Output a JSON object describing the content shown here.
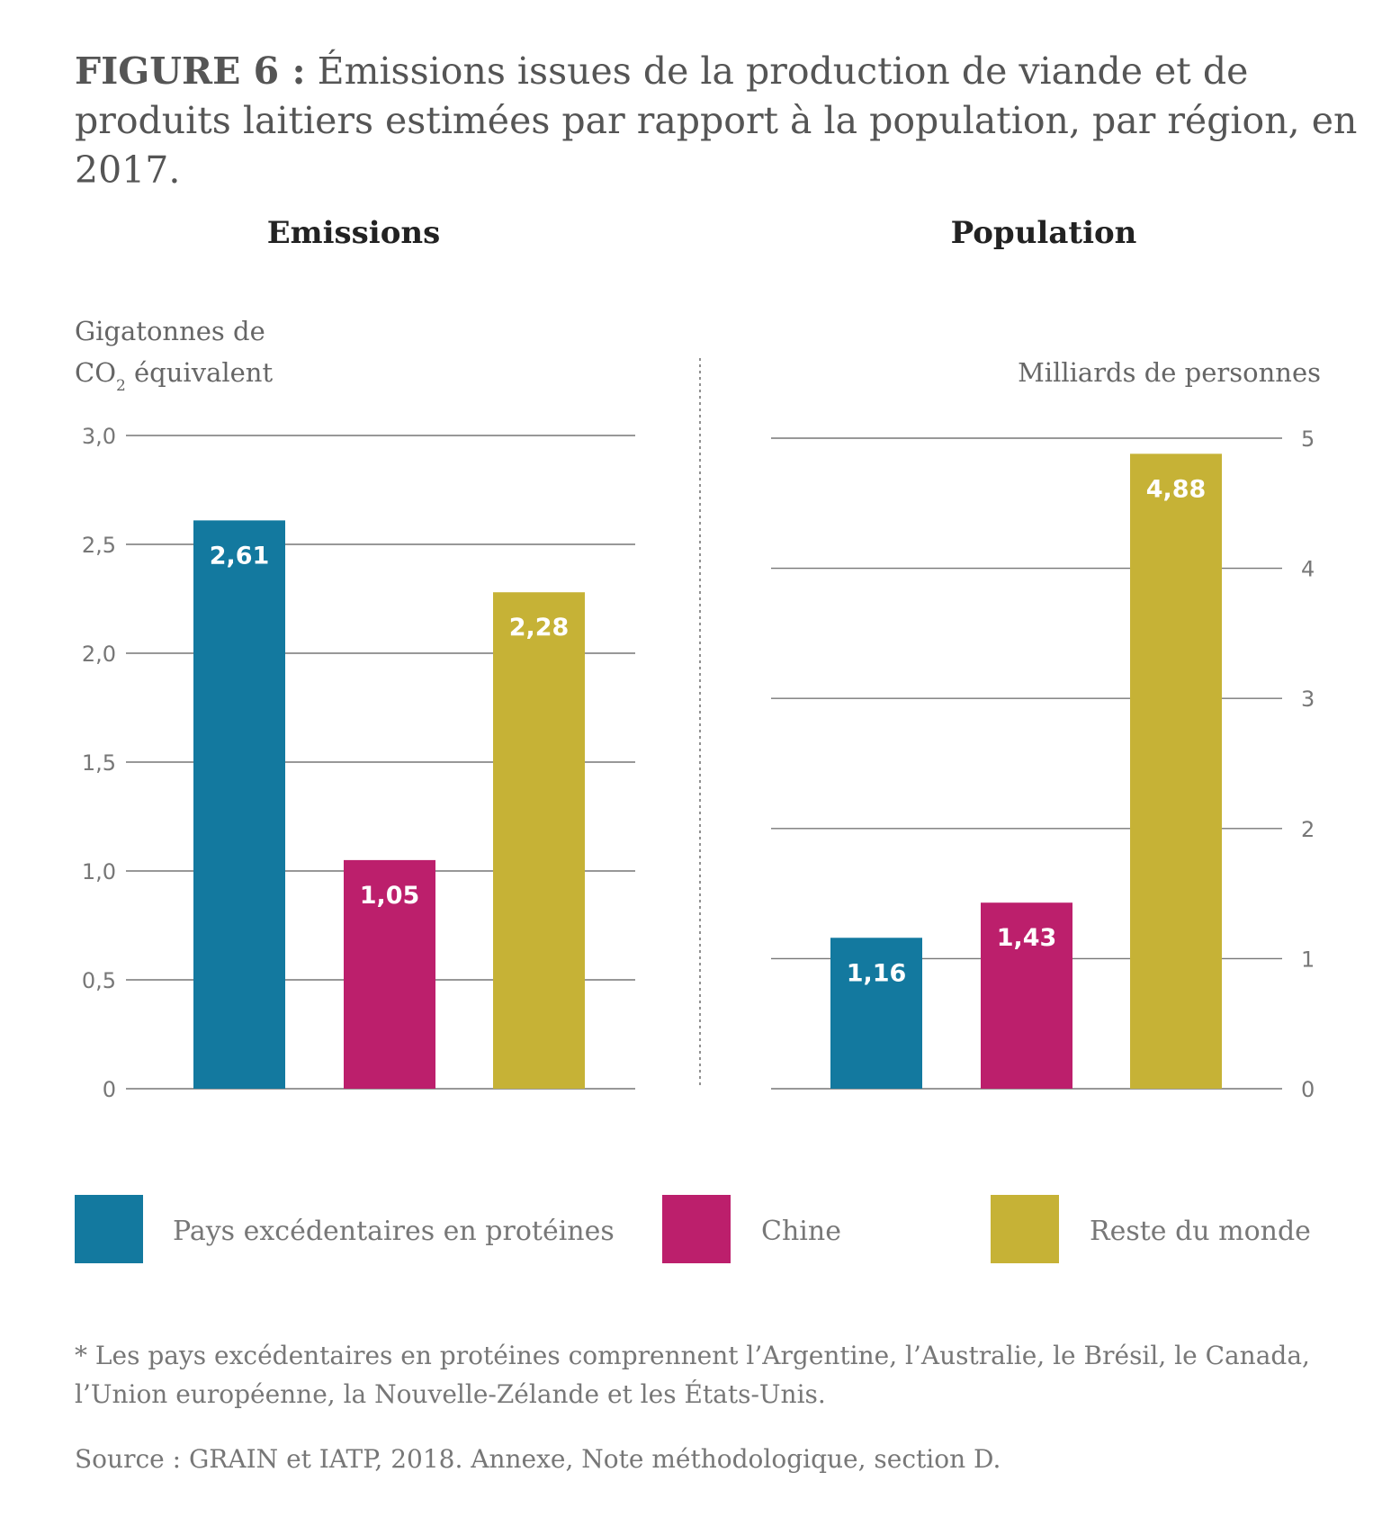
{
  "title": {
    "label": "FIGURE 6 :",
    "text": "Émissions issues de la production de viande et de produits laitiers estimées par rapport à la population, par région, en 2017."
  },
  "legend": [
    {
      "name": "Pays excédentaires en protéines",
      "color": "#13799f"
    },
    {
      "name": "Chine",
      "color": "#bc1f6c"
    },
    {
      "name": "Reste du monde",
      "color": "#c6b236"
    }
  ],
  "footnote": "* Les pays excédentaires en protéines comprennent l’Argentine, l’Australie, le Brésil, le Canada, l’Union européenne, la Nouvelle-Zélande et les États-Unis.",
  "source": "Source : GRAIN et IATP, 2018. Annexe, Note méthodologique, section D.",
  "chart_data": [
    {
      "type": "bar",
      "title": "Emissions",
      "ylabel_line1": "Gigatonnes de",
      "ylabel_line2_main": "CO",
      "ylabel_line2_sub": "2",
      "ylabel_line2_rest": " équivalent",
      "ylim": [
        0,
        3.0
      ],
      "ticks": [
        0,
        0.5,
        1.0,
        1.5,
        2.0,
        2.5,
        3.0
      ],
      "tick_labels": [
        "0",
        "0,5",
        "1,0",
        "1,5",
        "2,0",
        "2,5",
        "3,0"
      ],
      "y_axis_side": "left",
      "categories": [
        "Pays excédentaires en protéines",
        "Chine",
        "Reste du monde"
      ],
      "values": [
        2.61,
        1.05,
        2.28
      ],
      "value_labels": [
        "2,61",
        "1,05",
        "2,28"
      ],
      "grid": true
    },
    {
      "type": "bar",
      "title": "Population",
      "ylabel": "Milliards de personnes",
      "ylim": [
        0,
        5
      ],
      "ticks": [
        0,
        1,
        2,
        3,
        4,
        5
      ],
      "tick_labels": [
        "0",
        "1",
        "2",
        "3",
        "4",
        "5"
      ],
      "y_axis_side": "right",
      "categories": [
        "Pays excédentaires en protéines",
        "Chine",
        "Reste du monde"
      ],
      "values": [
        1.16,
        1.43,
        4.88
      ],
      "value_labels": [
        "1,16",
        "1,43",
        "4,88"
      ],
      "grid": true
    }
  ]
}
